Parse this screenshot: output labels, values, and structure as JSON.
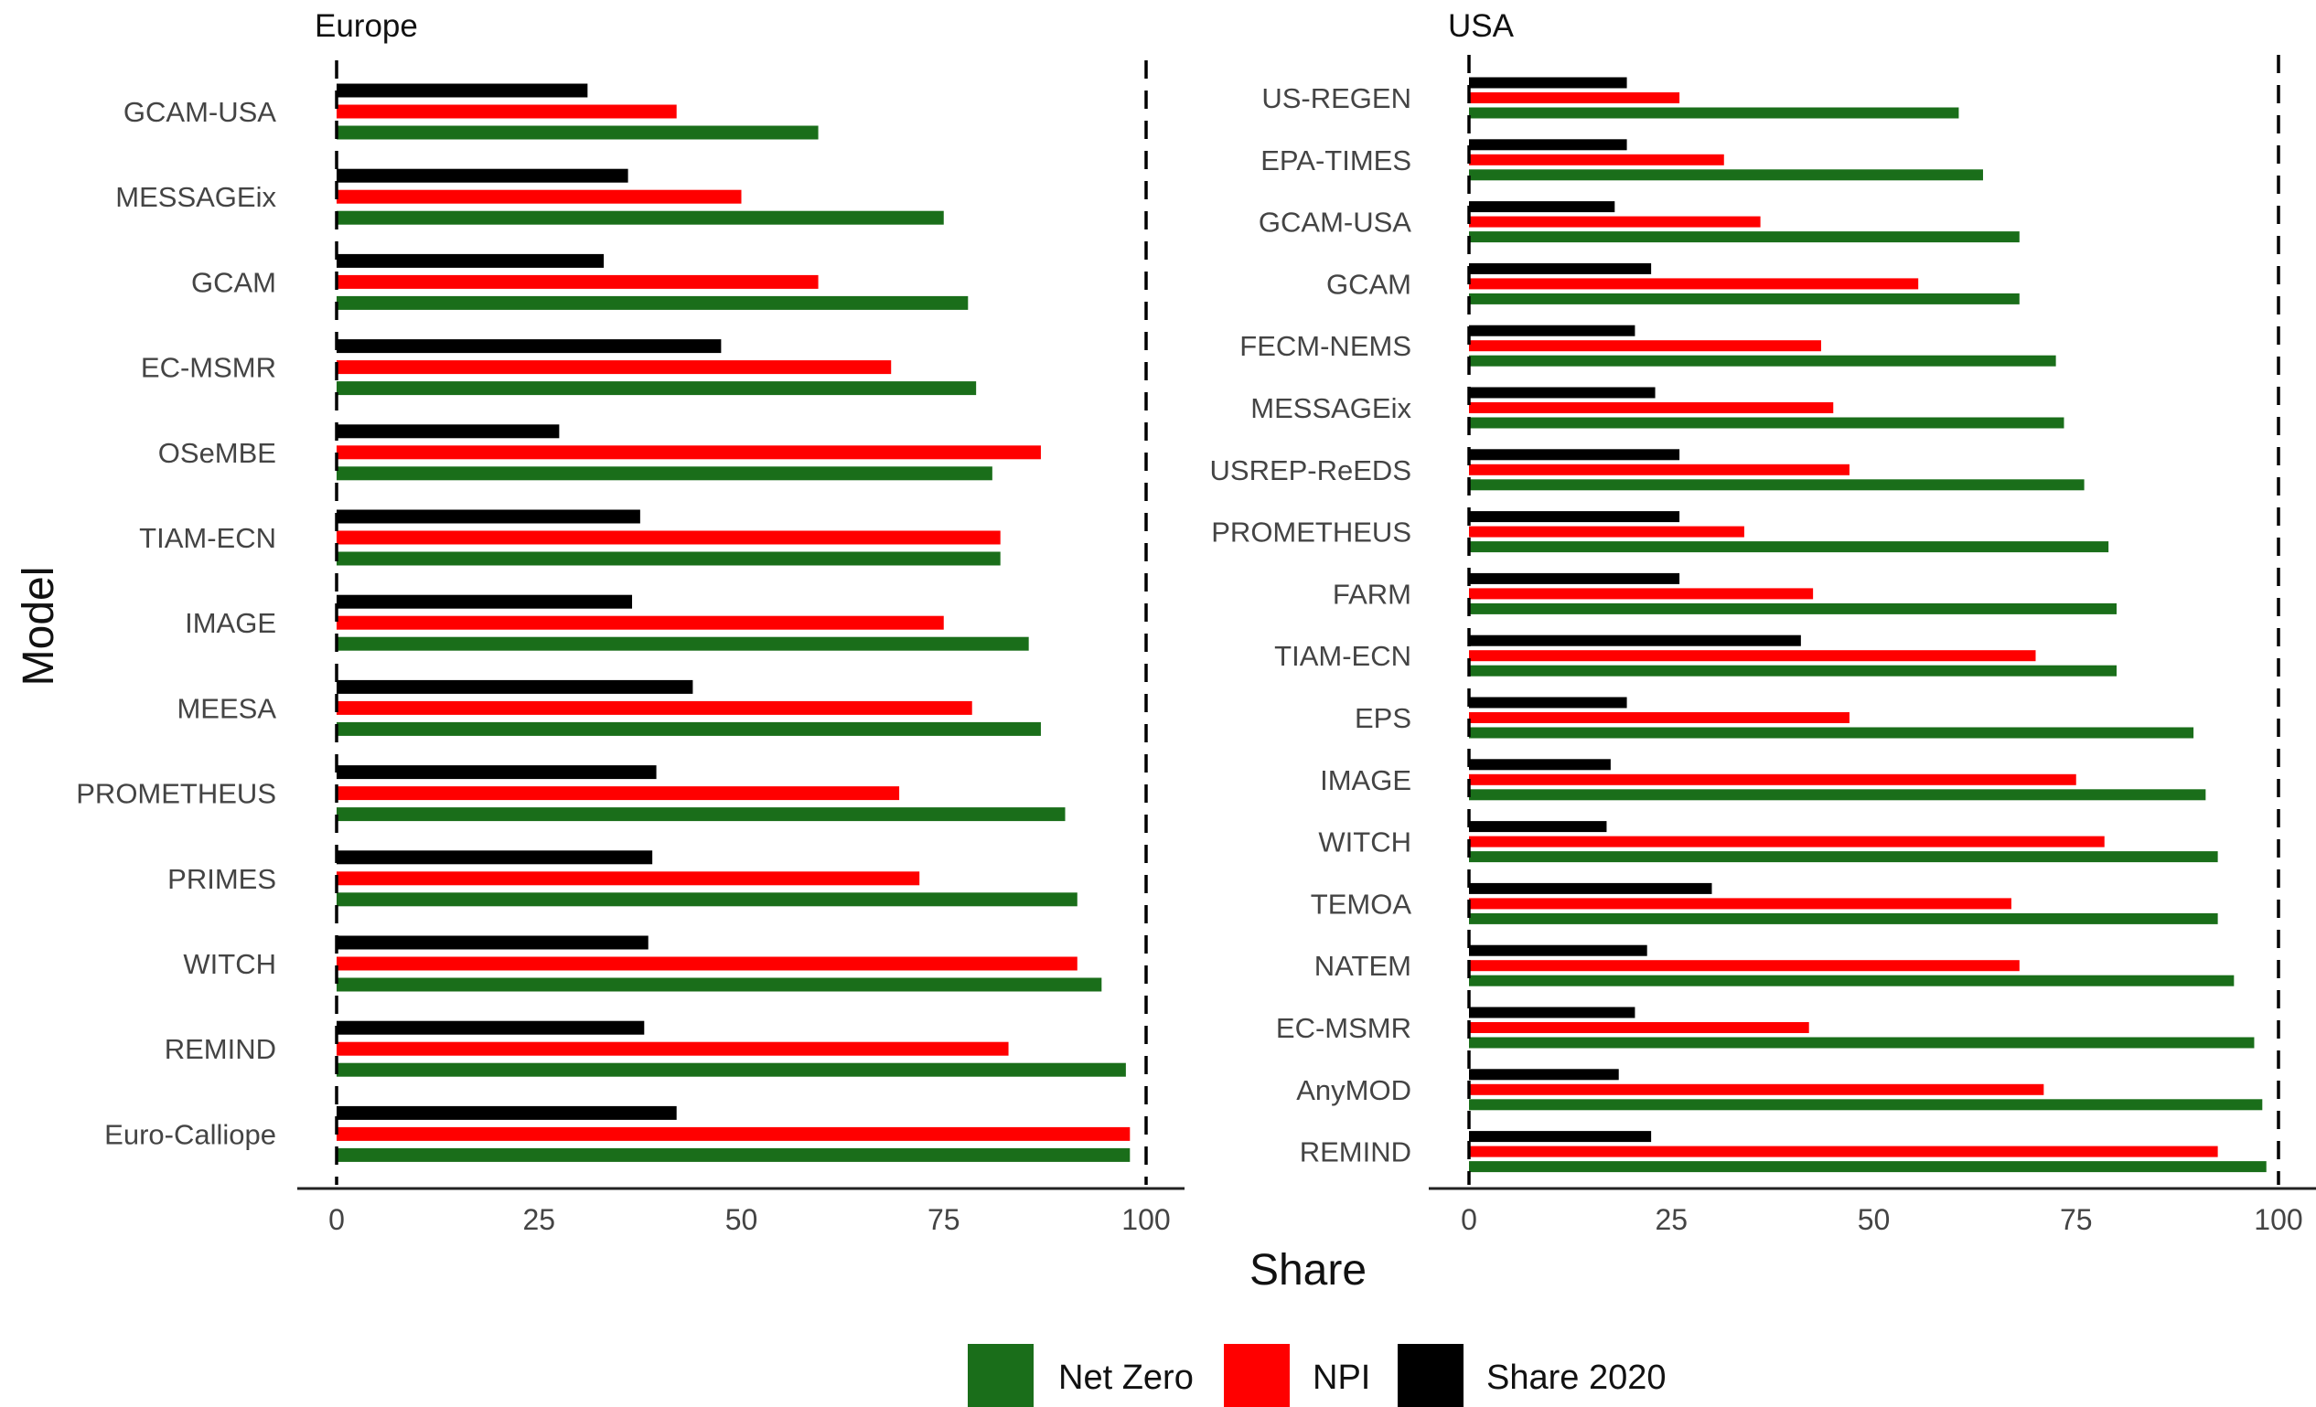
{
  "chart_data": {
    "type": "bar",
    "orientation": "horizontal",
    "xlabel": "Share",
    "ylabel": "Model",
    "xlim": [
      0,
      100
    ],
    "xticks": [
      0,
      25,
      50,
      75,
      100
    ],
    "reference_lines": [
      0,
      100
    ],
    "grid": false,
    "legend_position": "bottom",
    "series_names": [
      "Net Zero",
      "NPI",
      "Share 2020"
    ],
    "colors": {
      "Net Zero": "#1a6e1a",
      "NPI": "#ff0000",
      "Share 2020": "#000000"
    },
    "panels": [
      {
        "title": "Europe",
        "categories": [
          "GCAM-USA",
          "MESSAGEix",
          "GCAM",
          "EC-MSMR",
          "OSeMBE",
          "TIAM-ECN",
          "IMAGE",
          "MEESA",
          "PROMETHEUS",
          "PRIMES",
          "WITCH",
          "REMIND",
          "Euro-Calliope"
        ],
        "series": [
          {
            "name": "Share 2020",
            "values": [
              31,
              36,
              33,
              47.5,
              27.5,
              37.5,
              36.5,
              44,
              39.5,
              39,
              38.5,
              38,
              42
            ]
          },
          {
            "name": "NPI",
            "values": [
              42,
              50,
              59.5,
              68.5,
              87,
              82,
              75,
              78.5,
              69.5,
              72,
              91.5,
              83,
              98
            ]
          },
          {
            "name": "Net Zero",
            "values": [
              59.5,
              75,
              78,
              79,
              81,
              82,
              85.5,
              87,
              90,
              91.5,
              94.5,
              97.5,
              98
            ]
          }
        ]
      },
      {
        "title": "USA",
        "categories": [
          "US-REGEN",
          "EPA-TIMES",
          "GCAM-USA",
          "GCAM",
          "FECM-NEMS",
          "MESSAGEix",
          "USREP-ReEDS",
          "PROMETHEUS",
          "FARM",
          "TIAM-ECN",
          "EPS",
          "IMAGE",
          "WITCH",
          "TEMOA",
          "NATEM",
          "EC-MSMR",
          "AnyMOD",
          "REMIND"
        ],
        "series": [
          {
            "name": "Share 2020",
            "values": [
              19.5,
              19.5,
              18,
              22.5,
              20.5,
              23,
              26,
              26,
              26,
              41,
              19.5,
              17.5,
              17,
              30,
              22,
              20.5,
              18.5,
              22.5
            ]
          },
          {
            "name": "NPI",
            "values": [
              26,
              31.5,
              36,
              55.5,
              43.5,
              45,
              47,
              34,
              42.5,
              70,
              47,
              75,
              78.5,
              67,
              68,
              42,
              71,
              92.5
            ]
          },
          {
            "name": "Net Zero",
            "values": [
              60.5,
              63.5,
              68,
              68,
              72.5,
              73.5,
              76,
              79,
              80,
              80,
              89.5,
              91,
              92.5,
              92.5,
              94.5,
              97,
              98,
              98.5
            ]
          }
        ]
      }
    ]
  }
}
